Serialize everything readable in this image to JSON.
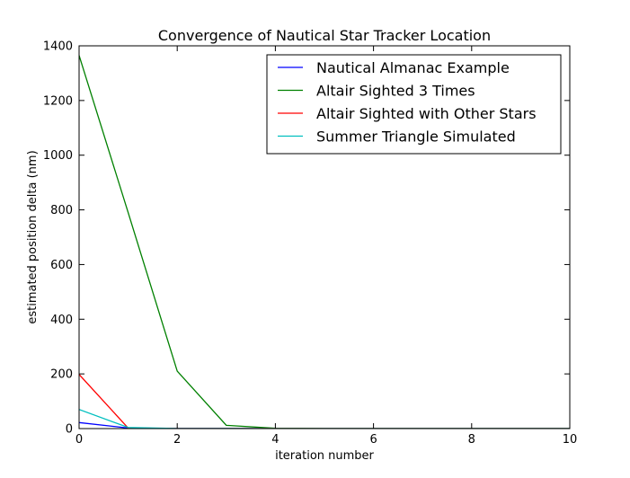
{
  "chart_data": {
    "type": "line",
    "title": "Convergence of Nautical Star Tracker Location",
    "xlabel": "iteration number",
    "ylabel": "estimated position delta (nm)",
    "xlim": [
      0,
      10
    ],
    "ylim": [
      0,
      1400
    ],
    "xticks": [
      0,
      2,
      4,
      6,
      8,
      10
    ],
    "yticks": [
      0,
      200,
      400,
      600,
      800,
      1000,
      1200,
      1400
    ],
    "grid": false,
    "legend_position": "upper-right",
    "x": [
      0,
      1,
      2,
      3,
      4,
      5,
      6,
      7,
      8,
      9,
      10
    ],
    "series": [
      {
        "name": "Nautical Almanac Example",
        "color": "#0000ff",
        "values": [
          22,
          2,
          0.5,
          0.2,
          0.1,
          0.1,
          0.1,
          0.1,
          0.1,
          0.1,
          0.1
        ]
      },
      {
        "name": "Altair Sighted 3 Times",
        "color": "#008000",
        "values": [
          1365,
          790,
          210,
          12,
          1,
          0.5,
          0.3,
          0.2,
          0.2,
          0.2,
          0.2
        ]
      },
      {
        "name": "Altair Sighted with Other Stars",
        "color": "#ff0000",
        "values": [
          198,
          2,
          0.5,
          0.2,
          0.1,
          0.1,
          0.1,
          0.1,
          0.1,
          0.1,
          0.1
        ]
      },
      {
        "name": "Summer Triangle Simulated",
        "color": "#00bfbf",
        "values": [
          70,
          4,
          0.5,
          0.2,
          0.1,
          0.1,
          0.1,
          0.1,
          0.1,
          0.1,
          0.1
        ]
      }
    ]
  }
}
